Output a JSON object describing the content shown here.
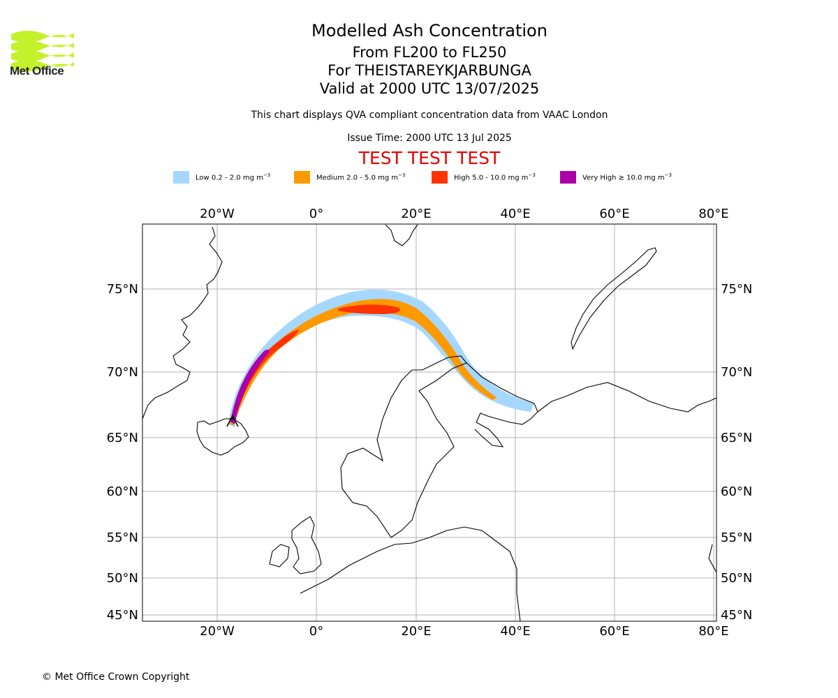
{
  "header": {
    "logo_text": "Met Office",
    "title": "Modelled Ash Concentration",
    "levels": "From FL200 to FL250",
    "volcano": "For THEISTAREYKJARBUNGA",
    "valid": "Valid at 2000 UTC 13/07/2025",
    "description": "This chart displays QVA compliant concentration data from VAAC London",
    "issue_time": "Issue Time: 2000 UTC 13 Jul 2025",
    "test_banner": "TEST TEST TEST"
  },
  "legend": [
    {
      "label": "Low 0.2 - 2.0 mg m",
      "unit_exp": "−3",
      "color": "#a6d8ff"
    },
    {
      "label": "Medium 2.0 - 5.0 mg m",
      "unit_exp": "−3",
      "color": "#ff9900"
    },
    {
      "label": "High 5.0 - 10.0 mg m",
      "unit_exp": "−3",
      "color": "#ff3300"
    },
    {
      "label": "Very High  ≥  10.0 mg m",
      "unit_exp": "−3",
      "color": "#aa00aa"
    }
  ],
  "axes": {
    "lon_ticks": [
      "20°W",
      "0°",
      "20°E",
      "40°E",
      "60°E",
      "80°E"
    ],
    "lat_ticks": [
      "75°N",
      "70°N",
      "65°N",
      "60°N",
      "55°N",
      "50°N",
      "45°N"
    ]
  },
  "map": {
    "projection": "polar stereographic",
    "volcano_marker": "volcano-icon",
    "grid": true
  },
  "footer": {
    "copyright": "© Met Office Crown Copyright"
  }
}
